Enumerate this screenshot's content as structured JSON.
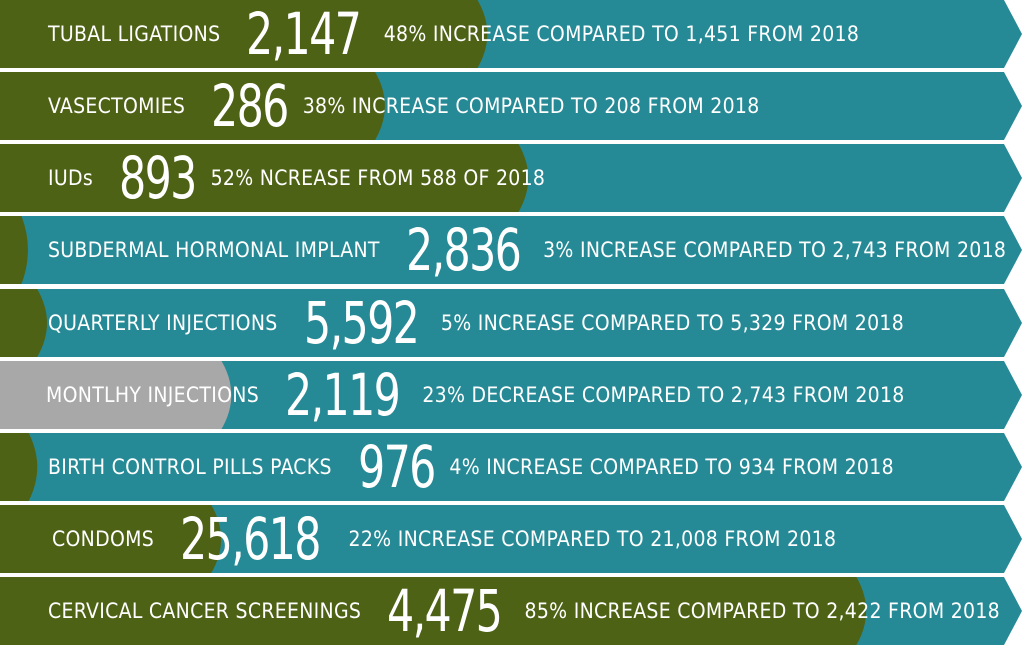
{
  "colors": {
    "band": "#268a96",
    "increase": "#4e6216",
    "decrease": "#a8a8a8",
    "text": "#ffffff"
  },
  "chart_data": {
    "type": "bar",
    "categories": [
      "TUBAL LIGATIONS",
      "VASECTOMIES",
      "IUDs",
      "SUBDERMAL HORMONAL IMPLANT",
      "QUARTERLY INJECTIONS",
      "MONTLHY INJECTIONS",
      "BIRTH CONTROL PILLS PACKS",
      "CONDOMS",
      "CERVICAL CANCER SCREENINGS"
    ],
    "values": [
      "2,147",
      "286",
      "893",
      "2,836",
      "5,592",
      "2,119",
      "976",
      "25,618",
      "4,475"
    ],
    "percent_change": [
      48,
      38,
      52,
      3,
      5,
      -23,
      4,
      22,
      85
    ],
    "notes": [
      "48% INCREASE COMPARED TO 1,451 FROM 2018",
      "38% INCREASE COMPARED TO 208 FROM 2018",
      "52% NCREASE FROM 588 OF 2018",
      "3% INCREASE COMPARED TO 2,743 FROM 2018",
      "5% INCREASE COMPARED TO 5,329 FROM 2018",
      "23% DECREASE COMPARED TO 2,743 FROM 2018",
      "4% INCREASE COMPARED TO 934 FROM 2018",
      "22% INCREASE COMPARED TO 21,008 FROM 2018",
      "85% INCREASE COMPARED TO 2,422 FROM 2018"
    ],
    "xlim": [
      0,
      100
    ]
  }
}
